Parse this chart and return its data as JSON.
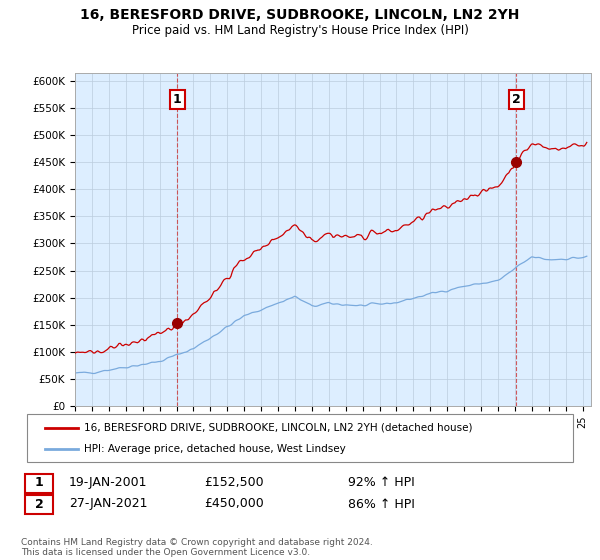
{
  "title_line1": "16, BERESFORD DRIVE, SUDBROOKE, LINCOLN, LN2 2YH",
  "title_line2": "Price paid vs. HM Land Registry's House Price Index (HPI)",
  "ylabel_ticks": [
    "£0",
    "£50K",
    "£100K",
    "£150K",
    "£200K",
    "£250K",
    "£300K",
    "£350K",
    "£400K",
    "£450K",
    "£500K",
    "£550K",
    "£600K"
  ],
  "ytick_vals": [
    0,
    50000,
    100000,
    150000,
    200000,
    250000,
    300000,
    350000,
    400000,
    450000,
    500000,
    550000,
    600000
  ],
  "ylim": [
    0,
    615000
  ],
  "xlim_start": 1995.0,
  "xlim_end": 2025.5,
  "sale1_year": 2001.05,
  "sale1_price": 152500,
  "sale2_year": 2021.07,
  "sale2_price": 450000,
  "line1_color": "#cc0000",
  "line2_color": "#7aaadd",
  "marker_color": "#990000",
  "vline_color": "#cc3333",
  "plot_bg_color": "#ddeeff",
  "legend_label1": "16, BERESFORD DRIVE, SUDBROOKE, LINCOLN, LN2 2YH (detached house)",
  "legend_label2": "HPI: Average price, detached house, West Lindsey",
  "annotation1_label": "1",
  "annotation2_label": "2",
  "table_row1": [
    "1",
    "19-JAN-2001",
    "£152,500",
    "92% ↑ HPI"
  ],
  "table_row2": [
    "2",
    "27-JAN-2021",
    "£450,000",
    "86% ↑ HPI"
  ],
  "footer": "Contains HM Land Registry data © Crown copyright and database right 2024.\nThis data is licensed under the Open Government Licence v3.0.",
  "bg_color": "#ffffff",
  "grid_color": "#bbccdd"
}
